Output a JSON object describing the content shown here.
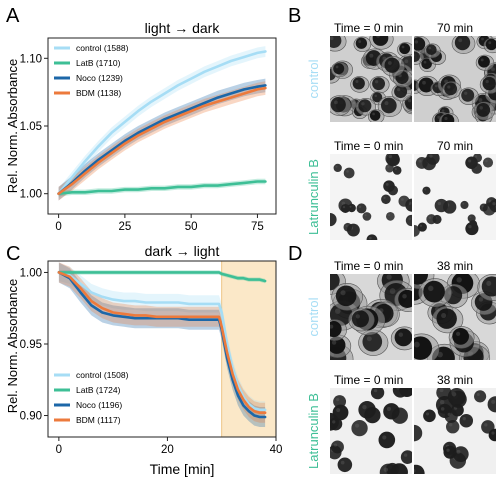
{
  "figure": {
    "panels": {
      "a": "A",
      "b": "B",
      "c": "C",
      "d": "D"
    },
    "colors": {
      "control": "#a6ddf5",
      "latb": "#3dbf96",
      "noco": "#1c67a8",
      "bdm": "#ec7a3c",
      "light_period": "#fbe8c8"
    },
    "image_panels": {
      "b": {
        "rows": [
          {
            "side_label": "control",
            "side_color": "#a6ddf5",
            "left_label": "Time = 0 min",
            "right_label": "70 min"
          },
          {
            "side_label": "Latrunculin B",
            "side_color": "#3dbf96",
            "left_label": "Time = 0 min",
            "right_label": "70 min"
          }
        ]
      },
      "d": {
        "rows": [
          {
            "side_label": "control",
            "side_color": "#a6ddf5",
            "left_label": "Time = 0 min",
            "right_label": "38 min"
          },
          {
            "side_label": "Latrunculin B",
            "side_color": "#3dbf96",
            "left_label": "Time = 0 min",
            "right_label": "38 min"
          }
        ]
      }
    }
  },
  "chart_data": [
    {
      "type": "line",
      "title": "light → dark",
      "xlabel": "",
      "ylabel": "Rel. Norm. Absorbance",
      "xlim": [
        -4,
        82
      ],
      "ylim": [
        0.985,
        1.115
      ],
      "xticks": [
        0,
        25,
        50,
        75
      ],
      "yticks": [
        1.0,
        1.05,
        1.1
      ],
      "ytick_labels": [
        "1.00",
        "1.05",
        "1.10"
      ],
      "legend_position": "top-left",
      "series": [
        {
          "name": "control (1588)",
          "color": "#a6ddf5",
          "band": 0.004,
          "x": [
            0,
            5,
            10,
            15,
            20,
            25,
            30,
            35,
            40,
            45,
            50,
            55,
            60,
            65,
            70,
            75,
            78
          ],
          "y": [
            1.0,
            1.012,
            1.024,
            1.035,
            1.045,
            1.053,
            1.061,
            1.068,
            1.074,
            1.08,
            1.085,
            1.09,
            1.094,
            1.098,
            1.101,
            1.104,
            1.105
          ]
        },
        {
          "name": "LatB (1710)",
          "color": "#3dbf96",
          "band": 0.002,
          "x": [
            0,
            5,
            10,
            15,
            20,
            25,
            30,
            35,
            40,
            45,
            50,
            55,
            60,
            65,
            70,
            75,
            78
          ],
          "y": [
            1.0,
            1.001,
            1.001,
            1.002,
            1.002,
            1.003,
            1.003,
            1.004,
            1.004,
            1.005,
            1.005,
            1.006,
            1.006,
            1.007,
            1.008,
            1.009,
            1.009
          ]
        },
        {
          "name": "Noco (1239)",
          "color": "#1c67a8",
          "band": 0.005,
          "x": [
            0,
            5,
            10,
            15,
            20,
            25,
            30,
            35,
            40,
            45,
            50,
            55,
            60,
            65,
            70,
            75,
            78
          ],
          "y": [
            1.0,
            1.008,
            1.017,
            1.025,
            1.032,
            1.039,
            1.045,
            1.05,
            1.055,
            1.059,
            1.063,
            1.067,
            1.071,
            1.074,
            1.077,
            1.079,
            1.08
          ]
        },
        {
          "name": "BDM (1138)",
          "color": "#ec7a3c",
          "band": 0.005,
          "x": [
            0,
            5,
            10,
            15,
            20,
            25,
            30,
            35,
            40,
            45,
            50,
            55,
            60,
            65,
            70,
            75,
            78
          ],
          "y": [
            1.0,
            1.007,
            1.015,
            1.023,
            1.03,
            1.037,
            1.043,
            1.048,
            1.053,
            1.057,
            1.061,
            1.065,
            1.068,
            1.071,
            1.074,
            1.077,
            1.078
          ]
        }
      ]
    },
    {
      "type": "line",
      "title": "dark → light",
      "xlabel": "Time [min]",
      "ylabel": "Rel. Norm. Absorbance",
      "xlim": [
        -2,
        40
      ],
      "ylim": [
        0.885,
        1.008
      ],
      "xticks": [
        0,
        20,
        40
      ],
      "yticks": [
        0.9,
        0.95,
        1.0
      ],
      "ytick_labels": [
        "0.90",
        "0.95",
        "1.00"
      ],
      "legend_position": "bottom-left",
      "shaded_region": [
        30,
        40
      ],
      "series": [
        {
          "name": "control (1508)",
          "color": "#a6ddf5",
          "band": 0.006,
          "x": [
            0,
            2,
            4,
            6,
            8,
            10,
            12,
            14,
            16,
            18,
            20,
            22,
            24,
            26,
            28,
            29.5,
            30,
            31,
            32,
            33,
            34,
            35,
            36,
            37,
            38
          ],
          "y": [
            1.0,
            0.998,
            0.992,
            0.986,
            0.983,
            0.981,
            0.98,
            0.98,
            0.979,
            0.979,
            0.979,
            0.979,
            0.978,
            0.978,
            0.978,
            0.978,
            0.972,
            0.95,
            0.933,
            0.921,
            0.913,
            0.908,
            0.905,
            0.904,
            0.904
          ]
        },
        {
          "name": "LatB (1724)",
          "color": "#3dbf96",
          "band": 0.0015,
          "x": [
            0,
            2,
            4,
            6,
            8,
            10,
            12,
            14,
            16,
            18,
            20,
            22,
            24,
            26,
            28,
            29.5,
            30,
            31,
            32,
            33,
            34,
            35,
            36,
            37,
            38
          ],
          "y": [
            1.0,
            1.0,
            1.0,
            1.0,
            1.0,
            1.0,
            1.0,
            1.0,
            1.0,
            1.0,
            1.0,
            1.0,
            1.0,
            1.0,
            1.0,
            1.0,
            0.999,
            0.998,
            0.997,
            0.996,
            0.996,
            0.995,
            0.995,
            0.995,
            0.994
          ]
        },
        {
          "name": "Noco (1196)",
          "color": "#1c67a8",
          "band": 0.007,
          "x": [
            0,
            2,
            4,
            6,
            8,
            10,
            12,
            14,
            16,
            18,
            20,
            22,
            24,
            26,
            28,
            29.5,
            30,
            31,
            32,
            33,
            34,
            35,
            36,
            37,
            38
          ],
          "y": [
            1.0,
            0.996,
            0.986,
            0.977,
            0.972,
            0.97,
            0.969,
            0.968,
            0.968,
            0.968,
            0.968,
            0.968,
            0.967,
            0.967,
            0.967,
            0.967,
            0.96,
            0.94,
            0.925,
            0.914,
            0.907,
            0.903,
            0.9,
            0.899,
            0.899
          ]
        },
        {
          "name": "BDM (1117)",
          "color": "#ec7a3c",
          "band": 0.007,
          "x": [
            0,
            2,
            4,
            6,
            8,
            10,
            12,
            14,
            16,
            18,
            20,
            22,
            24,
            26,
            28,
            29.5,
            30,
            31,
            32,
            33,
            34,
            35,
            36,
            37,
            38
          ],
          "y": [
            1.0,
            0.997,
            0.989,
            0.98,
            0.975,
            0.972,
            0.971,
            0.97,
            0.97,
            0.969,
            0.969,
            0.969,
            0.969,
            0.969,
            0.969,
            0.969,
            0.962,
            0.944,
            0.929,
            0.918,
            0.911,
            0.906,
            0.903,
            0.902,
            0.902
          ]
        }
      ]
    }
  ]
}
